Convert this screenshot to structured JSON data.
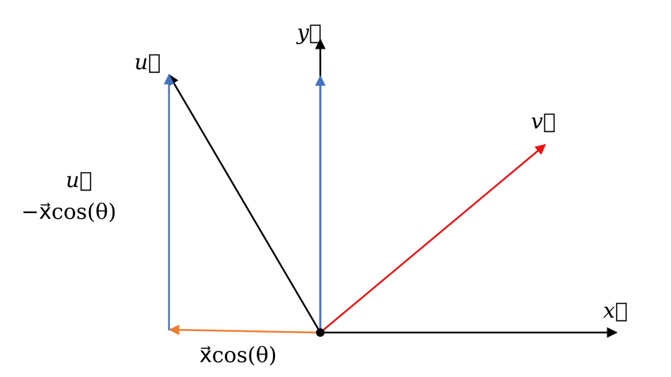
{
  "labels": {
    "y_axis": "y⃗",
    "x_axis": "x⃗",
    "u_vector": "u⃗",
    "v_vector": "v⃗",
    "diff_line1": "u⃗",
    "diff_line2": "−x⃗cos(θ)",
    "projection": "x⃗cos(θ)"
  },
  "colors": {
    "axis": "#000000",
    "u_vector": "#000000",
    "v_vector": "#ee1111",
    "blue": "#4472c4",
    "orange": "#ed7d31",
    "origin": "#000000"
  }
}
